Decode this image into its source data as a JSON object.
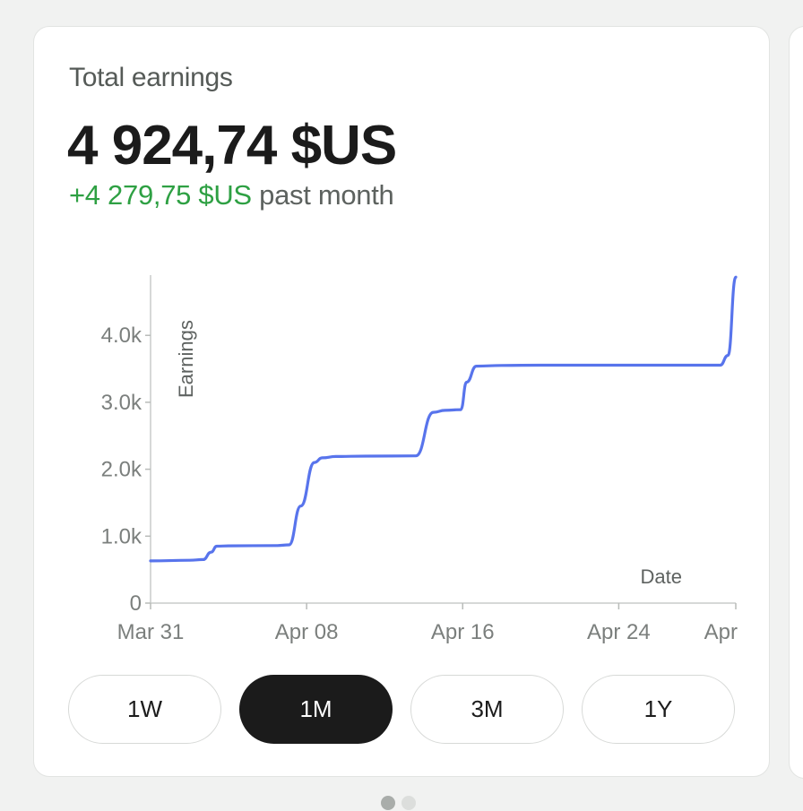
{
  "card": {
    "title": "Total earnings",
    "amount": "4 924,74 $US",
    "change_value": "+4 279,75 $US",
    "change_suffix": "past month"
  },
  "chart_data": {
    "type": "line",
    "ylabel": "Earnings",
    "xlabel": "Date",
    "ylim": [
      0,
      4900
    ],
    "y_ticks": [
      {
        "value": 0,
        "label": "0"
      },
      {
        "value": 1000,
        "label": "1.0k"
      },
      {
        "value": 2000,
        "label": "2.0k"
      },
      {
        "value": 3000,
        "label": "3.0k"
      },
      {
        "value": 4000,
        "label": "4.0k"
      }
    ],
    "x_ticks": [
      {
        "value": 0,
        "label": "Mar 31"
      },
      {
        "value": 8,
        "label": "Apr 08"
      },
      {
        "value": 16,
        "label": "Apr 16"
      },
      {
        "value": 24,
        "label": "Apr 24"
      },
      {
        "value": 30,
        "label": "Apr"
      }
    ],
    "x_domain_days": [
      0,
      30
    ],
    "series": [
      {
        "color": "#5874ec",
        "points": [
          [
            0,
            630
          ],
          [
            2,
            640
          ],
          [
            2.7,
            650
          ],
          [
            3.1,
            760
          ],
          [
            3.4,
            850
          ],
          [
            4,
            855
          ],
          [
            6.5,
            860
          ],
          [
            7.1,
            870
          ],
          [
            7.7,
            1450
          ],
          [
            8.4,
            2100
          ],
          [
            8.8,
            2170
          ],
          [
            9.5,
            2190
          ],
          [
            11,
            2195
          ],
          [
            13.6,
            2200
          ],
          [
            14.5,
            2850
          ],
          [
            15.1,
            2880
          ],
          [
            15.9,
            2890
          ],
          [
            16.2,
            3300
          ],
          [
            16.7,
            3540
          ],
          [
            18,
            3550
          ],
          [
            20,
            3555
          ],
          [
            24,
            3555
          ],
          [
            28,
            3555
          ],
          [
            29.2,
            3555
          ],
          [
            29.6,
            3700
          ],
          [
            30,
            4870
          ]
        ]
      }
    ],
    "grid": false,
    "legend": "none"
  },
  "ranges": {
    "options": [
      {
        "label": "1W",
        "active": false
      },
      {
        "label": "1M",
        "active": true
      },
      {
        "label": "3M",
        "active": false
      },
      {
        "label": "1Y",
        "active": false
      }
    ]
  },
  "pager": {
    "count": 2,
    "active_index": 0
  }
}
